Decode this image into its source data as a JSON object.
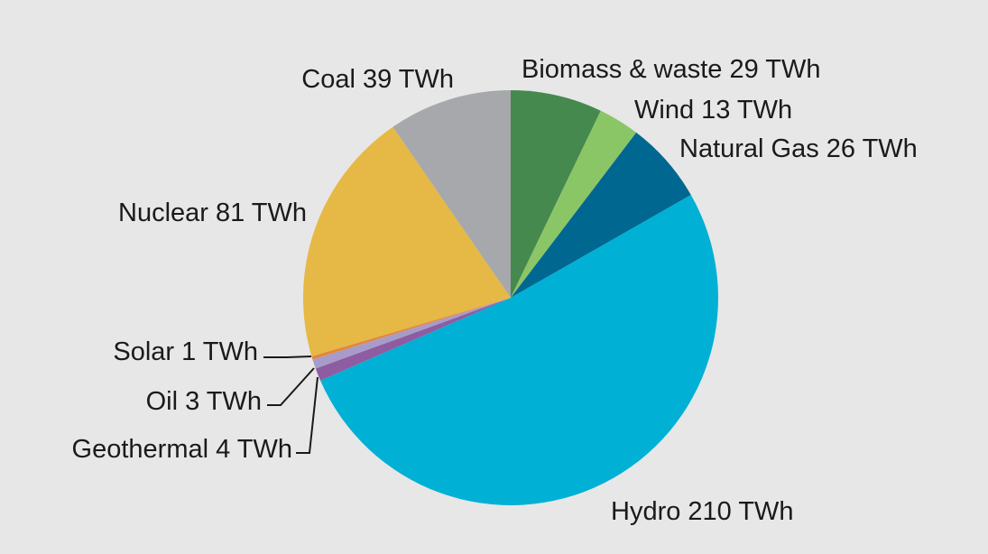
{
  "chart_data": {
    "type": "pie",
    "start_angle_deg": 0,
    "direction": "clockwise",
    "unit": "TWh",
    "slices": [
      {
        "name": "Biomass & waste",
        "value": 29,
        "label": "Biomass & waste 29 TWh",
        "color": "#45894f"
      },
      {
        "name": "Wind",
        "value": 13,
        "label": "Wind 13 TWh",
        "color": "#8bc666"
      },
      {
        "name": "Natural Gas",
        "value": 26,
        "label": "Natural Gas 26 TWh",
        "color": "#006791"
      },
      {
        "name": "Hydro",
        "value": 210,
        "label": "Hydro 210 TWh",
        "color": "#00b0d5"
      },
      {
        "name": "Geothermal",
        "value": 4,
        "label": "Geothermal 4 TWh",
        "color": "#8e5da1"
      },
      {
        "name": "Oil",
        "value": 3,
        "label": "Oil 3 TWh",
        "color": "#a79cc9"
      },
      {
        "name": "Solar",
        "value": 1,
        "label": "Solar 1 TWh",
        "color": "#e6853a"
      },
      {
        "name": "Nuclear",
        "value": 81,
        "label": "Nuclear 81 TWh",
        "color": "#e6b845"
      },
      {
        "name": "Coal",
        "value": 39,
        "label": "Coal 39 TWh",
        "color": "#a6a8ab"
      }
    ]
  },
  "colors": {
    "background": "#e7e7e7",
    "text": "#1a1a1a"
  }
}
